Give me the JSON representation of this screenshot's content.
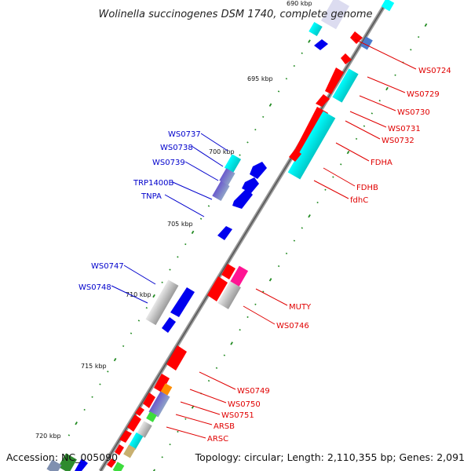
{
  "title": "Wolinella succinogenes DSM 1740, complete genome",
  "footer": {
    "accession": "Accession: NC_005090",
    "summary": "Topology: circular; Length: 2,110,355 bp; Genes: 2,091"
  },
  "ticks": [
    "690 kbp",
    "695 kbp",
    "700 kbp",
    "705 kbp",
    "710 kbp",
    "715 kbp",
    "720 kbp"
  ],
  "labels_forward": [
    "WS0724",
    "WS0729",
    "WS0730",
    "WS0731",
    "WS0732",
    "FDHA",
    "FDHB",
    "fdhC",
    "MUTY",
    "WS0746",
    "WS0749",
    "WS0750",
    "WS0751",
    "ARSB",
    "ARSC"
  ],
  "labels_reverse": [
    "WS0737",
    "WS0738",
    "WS0739",
    "TRP1400B",
    "TNPA",
    "WS0747",
    "WS0748"
  ],
  "colors": {
    "forward": "#ff0000",
    "reverse": "#0000ff",
    "rna": "#00ffff",
    "backbone": "#808080",
    "tick_mark": "#228b22"
  }
}
